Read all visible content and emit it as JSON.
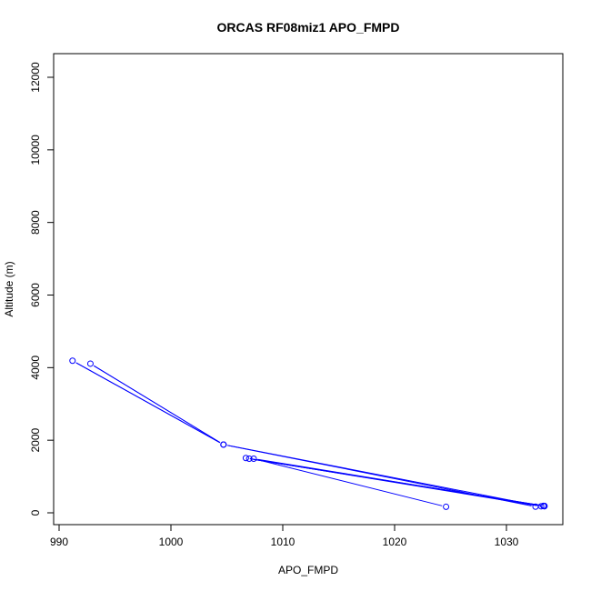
{
  "chart_data": {
    "type": "line",
    "title": "ORCAS RF08miz1 APO_FMPD",
    "xlabel": "APO_FMPD",
    "ylabel": "Altitude (m)",
    "xlim": [
      990,
      1035
    ],
    "ylim": [
      0,
      12500
    ],
    "x_ticks": [
      990,
      1000,
      1010,
      1020,
      1030
    ],
    "y_ticks": [
      0,
      2000,
      4000,
      6000,
      8000,
      10000,
      12000
    ],
    "grid": false,
    "legend": "none",
    "series": [
      {
        "color": "#0000ff",
        "marker": "open-circle",
        "points": [
          {
            "x": 1024.6,
            "y": 165
          },
          {
            "x": 1007.4,
            "y": 1490
          },
          {
            "x": 1033.3,
            "y": 190
          },
          {
            "x": 1007.0,
            "y": 1490
          },
          {
            "x": 1033.4,
            "y": 190
          },
          {
            "x": 1006.7,
            "y": 1510
          },
          {
            "x": 1033.1,
            "y": 180
          },
          {
            "x": 1004.7,
            "y": 1880
          },
          {
            "x": 991.2,
            "y": 4190
          },
          {
            "x": 1004.7,
            "y": 1880
          },
          {
            "x": 992.8,
            "y": 4110
          },
          {
            "x": 1004.7,
            "y": 1880
          },
          {
            "x": 1032.6,
            "y": 170
          },
          {
            "x": 1033.4,
            "y": 180
          }
        ]
      }
    ]
  }
}
